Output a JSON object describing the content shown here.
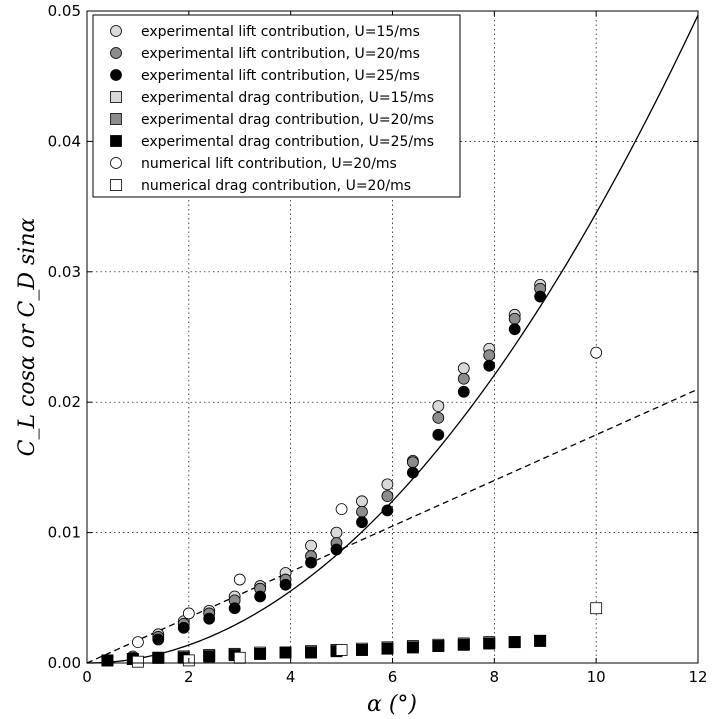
{
  "chart_data": {
    "type": "scatter",
    "title": "",
    "xlabel": "α (°)",
    "ylabel": "C_L cosα or C_D sinα",
    "xlim": [
      0,
      12
    ],
    "ylim": [
      0,
      0.05
    ],
    "xticks": [
      0,
      2,
      4,
      6,
      8,
      10,
      12
    ],
    "yticks": [
      0.0,
      0.01,
      0.02,
      0.03,
      0.04,
      0.05
    ],
    "xtick_labels": [
      "0",
      "2",
      "4",
      "6",
      "8",
      "10",
      "12"
    ],
    "ytick_labels": [
      "0.00",
      "0.01",
      "0.02",
      "0.03",
      "0.04",
      "0.05"
    ],
    "grid": true,
    "legend_position": "top-left",
    "series": [
      {
        "name": "experimental lift contribution, U=15/ms",
        "marker": "circle",
        "color": "#d9d9d9",
        "x": [
          0.9,
          1.4,
          1.9,
          2.4,
          2.9,
          3.4,
          3.9,
          4.4,
          4.9,
          5.4,
          5.9,
          6.4,
          6.9,
          7.4,
          7.9,
          8.4,
          8.9
        ],
        "y": [
          0.0005,
          0.0022,
          0.0032,
          0.004,
          0.0051,
          0.0059,
          0.0069,
          0.009,
          0.01,
          0.0124,
          0.0137,
          0.0155,
          0.0197,
          0.0226,
          0.0241,
          0.0267,
          0.029
        ]
      },
      {
        "name": "experimental lift contribution, U=20/ms",
        "marker": "circle",
        "color": "#8c8c8c",
        "x": [
          0.9,
          1.4,
          1.9,
          2.4,
          2.9,
          3.4,
          3.9,
          4.4,
          4.9,
          5.4,
          5.9,
          6.4,
          6.9,
          7.4,
          7.9,
          8.4,
          8.9
        ],
        "y": [
          0.0004,
          0.002,
          0.003,
          0.0038,
          0.0048,
          0.0057,
          0.0064,
          0.0082,
          0.0092,
          0.0116,
          0.0128,
          0.0154,
          0.0188,
          0.0218,
          0.0236,
          0.0264,
          0.0287
        ]
      },
      {
        "name": "experimental lift contribution, U=25/ms",
        "marker": "circle",
        "color": "#000000",
        "x": [
          0.9,
          1.4,
          1.9,
          2.4,
          2.9,
          3.4,
          3.9,
          4.4,
          4.9,
          5.4,
          5.9,
          6.4,
          6.9,
          7.4,
          7.9,
          8.4,
          8.9
        ],
        "y": [
          0.0003,
          0.0018,
          0.0027,
          0.0034,
          0.0042,
          0.0051,
          0.006,
          0.0077,
          0.0087,
          0.0108,
          0.0117,
          0.0146,
          0.0175,
          0.0208,
          0.0228,
          0.0256,
          0.0281
        ]
      },
      {
        "name": "experimental drag contribution, U=15/ms",
        "marker": "square",
        "color": "#d9d9d9",
        "x": [
          0.4,
          0.9,
          1.4,
          1.9,
          2.4,
          2.9,
          3.4,
          3.9,
          4.4,
          4.9,
          5.4,
          5.9,
          6.4,
          6.9,
          7.4,
          7.9,
          8.4,
          8.9
        ],
        "y": [
          0.0002,
          0.0003,
          0.0004,
          0.0005,
          0.0006,
          0.0007,
          0.0008,
          0.0008,
          0.0009,
          0.001,
          0.0011,
          0.0012,
          0.0013,
          0.0014,
          0.0015,
          0.0016,
          0.0016,
          0.0017
        ]
      },
      {
        "name": "experimental drag contribution, U=20/ms",
        "marker": "square",
        "color": "#8c8c8c",
        "x": [
          0.4,
          0.9,
          1.4,
          1.9,
          2.4,
          2.9,
          3.4,
          3.9,
          4.4,
          4.9,
          5.4,
          5.9,
          6.4,
          6.9,
          7.4,
          7.9,
          8.4,
          8.9
        ],
        "y": [
          0.0002,
          0.0003,
          0.0004,
          0.0005,
          0.0006,
          0.0007,
          0.0007,
          0.0008,
          0.0009,
          0.001,
          0.001,
          0.0011,
          0.0012,
          0.0013,
          0.0014,
          0.0015,
          0.0016,
          0.0017
        ]
      },
      {
        "name": "experimental drag contribution, U=25/ms",
        "marker": "square",
        "color": "#000000",
        "x": [
          0.4,
          0.9,
          1.4,
          1.9,
          2.4,
          2.9,
          3.4,
          3.9,
          4.4,
          4.9,
          5.4,
          5.9,
          6.4,
          6.9,
          7.4,
          7.9,
          8.4,
          8.9
        ],
        "y": [
          0.0002,
          0.0003,
          0.0004,
          0.0004,
          0.0005,
          0.0006,
          0.0007,
          0.0008,
          0.0008,
          0.0009,
          0.001,
          0.0011,
          0.0012,
          0.0013,
          0.0014,
          0.0015,
          0.0016,
          0.0017
        ]
      },
      {
        "name": "numerical lift contribution, U=20/ms",
        "marker": "circle",
        "color": "#ffffff",
        "x": [
          1.0,
          2.0,
          3.0,
          5.0,
          10.0
        ],
        "y": [
          0.0016,
          0.0038,
          0.0064,
          0.0118,
          0.0238
        ]
      },
      {
        "name": "numerical drag contribution, U=20/ms",
        "marker": "square",
        "color": "#ffffff",
        "x": [
          1.0,
          2.0,
          3.0,
          5.0,
          10.0
        ],
        "y": [
          0.0001,
          0.0002,
          0.0004,
          0.001,
          0.0042
        ]
      }
    ],
    "curves": [
      {
        "style": "solid",
        "color": "#000000",
        "formula": "y = 0.000345 * x^2",
        "x_range": [
          0,
          12
        ]
      },
      {
        "style": "dashed",
        "color": "#000000",
        "formula": "y = 0.00175 * x",
        "x_range": [
          0,
          12
        ]
      }
    ]
  }
}
